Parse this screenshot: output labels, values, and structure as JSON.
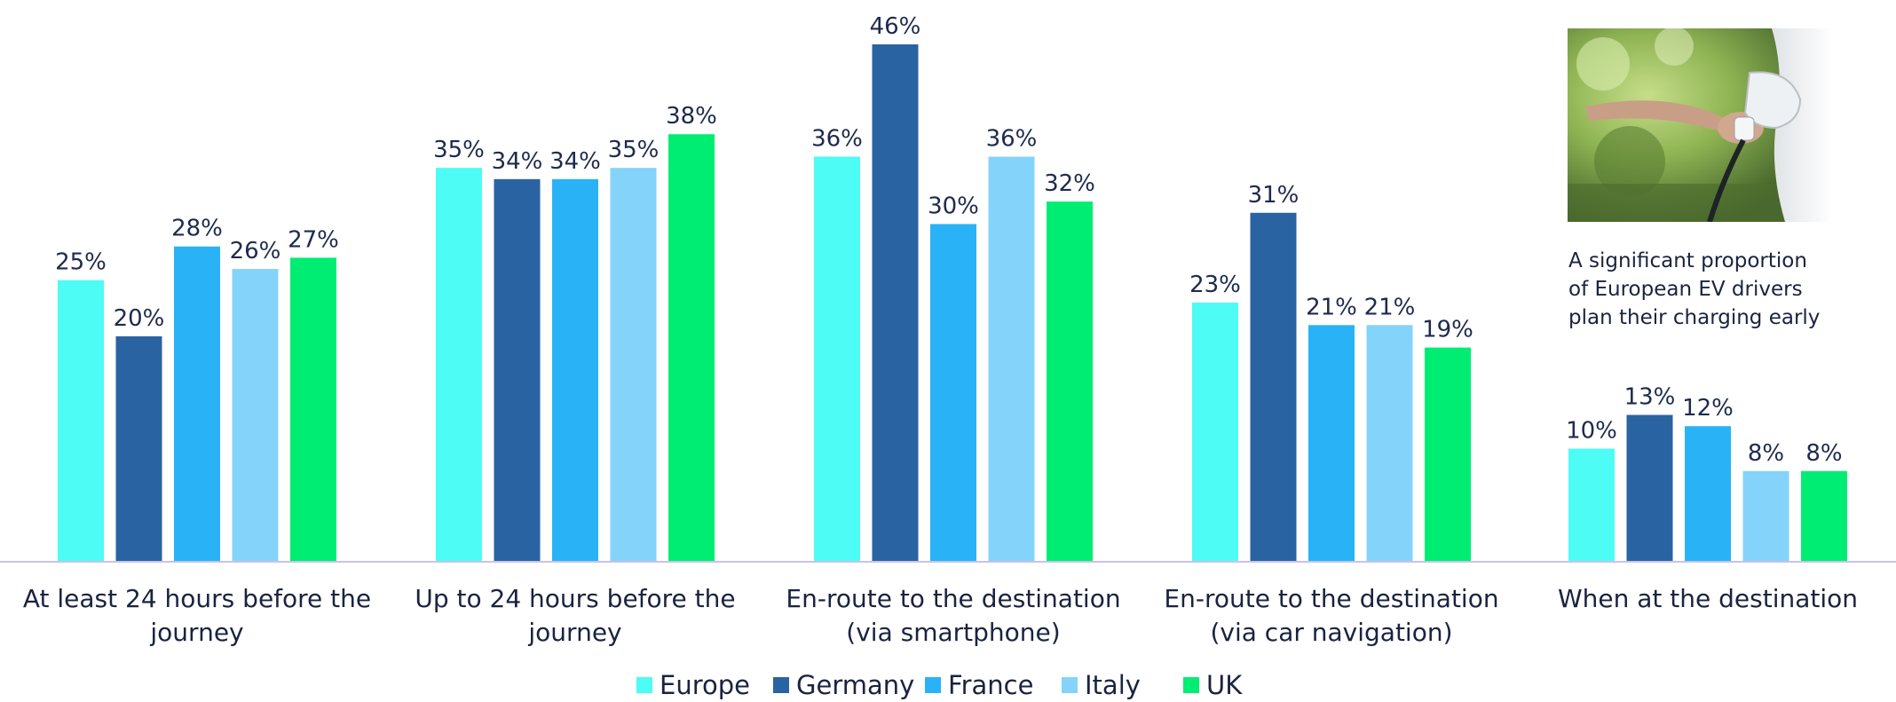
{
  "chart_data": {
    "type": "bar",
    "categories": [
      [
        "At least 24 hours before the",
        "journey"
      ],
      [
        "Up to 24 hours before the",
        "journey"
      ],
      [
        "En-route to the destination",
        "(via smartphone)"
      ],
      [
        "En-route to the destination",
        "(via car navigation)"
      ],
      [
        "When at the destination"
      ]
    ],
    "series": [
      {
        "name": "Europe",
        "color": "#4dfcf4",
        "values": [
          25,
          35,
          36,
          23,
          10
        ]
      },
      {
        "name": "Germany",
        "color": "#2a63a1",
        "values": [
          20,
          34,
          46,
          31,
          13
        ]
      },
      {
        "name": "France",
        "color": "#29b3f6",
        "values": [
          28,
          34,
          30,
          21,
          12
        ]
      },
      {
        "name": "Italy",
        "color": "#84d3fb",
        "values": [
          26,
          35,
          36,
          21,
          8
        ]
      },
      {
        "name": "UK",
        "color": "#00ed74",
        "values": [
          27,
          38,
          32,
          19,
          8
        ]
      }
    ],
    "value_suffix": "%",
    "ylim": [
      0,
      46
    ],
    "grid": false,
    "legend_position": "bottom-center",
    "axis_color": "#c9c3e6"
  },
  "annotation": {
    "lines": [
      "A significant proportion",
      "of European EV drivers",
      "plan their charging early"
    ]
  }
}
